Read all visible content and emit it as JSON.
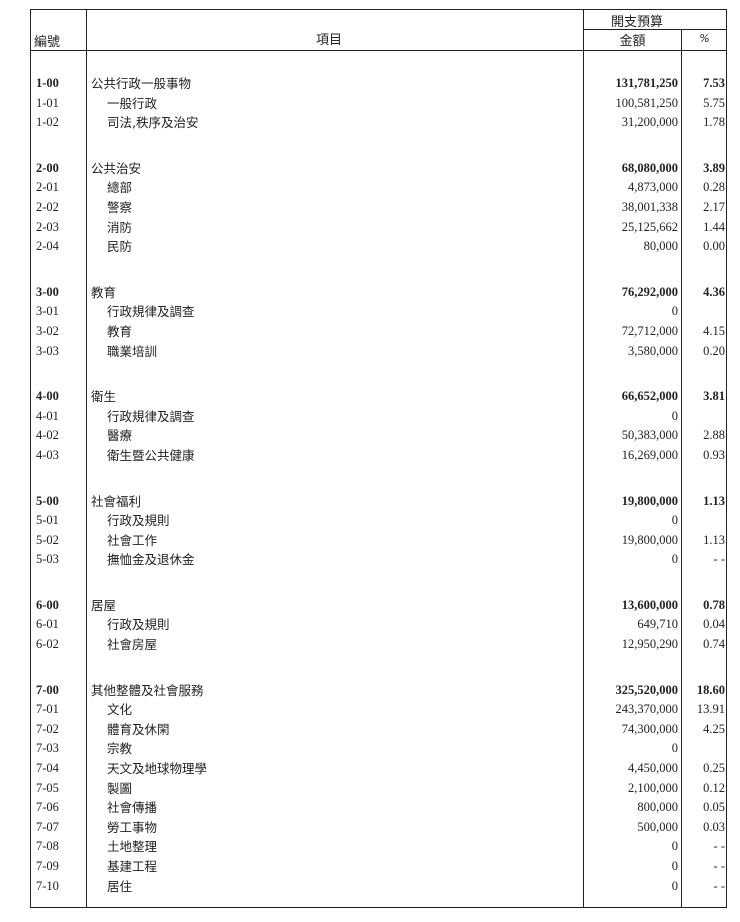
{
  "header": {
    "code_label": "編號",
    "item_label": "項目",
    "budget_label": "開支預算",
    "amount_label": "金額",
    "percent_label": "%"
  },
  "groups": [
    {
      "rows": [
        {
          "code": "1-00",
          "name": "公共行政一般事物",
          "amount": "131,781,250",
          "pct": "7.53"
        },
        {
          "code": "1-01",
          "name": "一般行政",
          "amount": "100,581,250",
          "pct": "5.75"
        },
        {
          "code": "1-02",
          "name": "司法,秩序及治安",
          "amount": "31,200,000",
          "pct": "1.78"
        }
      ]
    },
    {
      "rows": [
        {
          "code": "2-00",
          "name": "公共治安",
          "amount": "68,080,000",
          "pct": "3.89"
        },
        {
          "code": "2-01",
          "name": "總部",
          "amount": "4,873,000",
          "pct": "0.28"
        },
        {
          "code": "2-02",
          "name": "警察",
          "amount": "38,001,338",
          "pct": "2.17"
        },
        {
          "code": "2-03",
          "name": "消防",
          "amount": "25,125,662",
          "pct": "1.44"
        },
        {
          "code": "2-04",
          "name": "民防",
          "amount": "80,000",
          "pct": "0.00"
        }
      ]
    },
    {
      "rows": [
        {
          "code": "3-00",
          "name": "教育",
          "amount": "76,292,000",
          "pct": "4.36"
        },
        {
          "code": "3-01",
          "name": "行政規律及調查",
          "amount": "0",
          "pct": ""
        },
        {
          "code": "3-02",
          "name": "教育",
          "amount": "72,712,000",
          "pct": "4.15"
        },
        {
          "code": "3-03",
          "name": "職業培訓",
          "amount": "3,580,000",
          "pct": "0.20"
        }
      ]
    },
    {
      "rows": [
        {
          "code": "4-00",
          "name": "衛生",
          "amount": "66,652,000",
          "pct": "3.81"
        },
        {
          "code": "4-01",
          "name": "行政規律及調查",
          "amount": "0",
          "pct": ""
        },
        {
          "code": "4-02",
          "name": "醫療",
          "amount": "50,383,000",
          "pct": "2.88"
        },
        {
          "code": "4-03",
          "name": "衛生暨公共健康",
          "amount": "16,269,000",
          "pct": "0.93"
        }
      ]
    },
    {
      "rows": [
        {
          "code": "5-00",
          "name": "社會福利",
          "amount": "19,800,000",
          "pct": "1.13"
        },
        {
          "code": "5-01",
          "name": "行政及規則",
          "amount": "0",
          "pct": ""
        },
        {
          "code": "5-02",
          "name": "社會工作",
          "amount": "19,800,000",
          "pct": "1.13"
        },
        {
          "code": "5-03",
          "name": "撫恤金及退休金",
          "amount": "0",
          "pct": "- -"
        }
      ]
    },
    {
      "rows": [
        {
          "code": "6-00",
          "name": "居屋",
          "amount": "13,600,000",
          "pct": "0.78"
        },
        {
          "code": "6-01",
          "name": "行政及規則",
          "amount": "649,710",
          "pct": "0.04"
        },
        {
          "code": "6-02",
          "name": "社會房屋",
          "amount": "12,950,290",
          "pct": "0.74"
        }
      ]
    },
    {
      "rows": [
        {
          "code": "7-00",
          "name": "其他整體及社會服務",
          "amount": "325,520,000",
          "pct": "18.60"
        },
        {
          "code": "7-01",
          "name": "文化",
          "amount": "243,370,000",
          "pct": "13.91"
        },
        {
          "code": "7-02",
          "name": "體育及休閑",
          "amount": "74,300,000",
          "pct": "4.25"
        },
        {
          "code": "7-03",
          "name": "宗教",
          "amount": "0",
          "pct": ""
        },
        {
          "code": "7-04",
          "name": "天文及地球物理學",
          "amount": "4,450,000",
          "pct": "0.25"
        },
        {
          "code": "7-05",
          "name": "製圖",
          "amount": "2,100,000",
          "pct": "0.12"
        },
        {
          "code": "7-06",
          "name": "社會傳播",
          "amount": "800,000",
          "pct": "0.05"
        },
        {
          "code": "7-07",
          "name": "勞工事物",
          "amount": "500,000",
          "pct": "0.03"
        },
        {
          "code": "7-08",
          "name": "土地整理",
          "amount": "0",
          "pct": "- -"
        },
        {
          "code": "7-09",
          "name": "基建工程",
          "amount": "0",
          "pct": "- -"
        },
        {
          "code": "7-10",
          "name": "居住",
          "amount": "0",
          "pct": "- -"
        }
      ]
    }
  ]
}
